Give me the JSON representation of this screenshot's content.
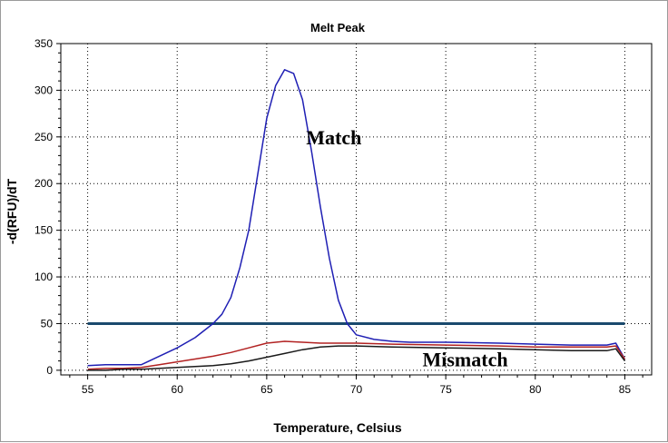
{
  "chart_data": {
    "type": "line",
    "title": "Melt Peak",
    "xlabel": "Temperature, Celsius",
    "ylabel": "-d(RFU)/dT",
    "xlim": [
      53.5,
      86.5
    ],
    "ylim": [
      -5,
      350
    ],
    "xticks": [
      55,
      60,
      65,
      70,
      75,
      80,
      85
    ],
    "yticks": [
      0,
      50,
      100,
      150,
      200,
      250,
      300,
      350
    ],
    "grid": true,
    "annotations": [
      {
        "text": "Match",
        "x": 67.2,
        "y": 242
      },
      {
        "text": "Mismatch",
        "x": 73.7,
        "y": 4
      }
    ],
    "threshold": {
      "y": 50,
      "color": "#1a4a6e"
    },
    "series": [
      {
        "color": "#1f1fb4",
        "x": [
          55,
          56,
          57,
          58,
          59,
          60,
          61,
          62,
          62.5,
          63,
          63.5,
          64,
          64.5,
          65,
          65.5,
          66,
          66.5,
          67,
          67.5,
          68,
          68.5,
          69,
          69.5,
          70,
          71,
          72,
          73,
          75,
          78,
          80,
          82,
          84,
          84.5,
          85
        ],
        "y": [
          5,
          6,
          6,
          6,
          15,
          24,
          35,
          50,
          60,
          78,
          110,
          150,
          210,
          270,
          305,
          322,
          318,
          290,
          235,
          175,
          120,
          75,
          50,
          38,
          33,
          31,
          30,
          30,
          29,
          28,
          27,
          27,
          29,
          12
        ]
      },
      {
        "color": "#b22222",
        "x": [
          55,
          56,
          57,
          58,
          59,
          60,
          61,
          62,
          63,
          64,
          65,
          66,
          67,
          68,
          69,
          70,
          72,
          75,
          78,
          80,
          82,
          84,
          84.5,
          85
        ],
        "y": [
          1,
          2,
          2,
          3,
          6,
          9,
          12,
          15,
          19,
          24,
          29,
          31,
          30,
          29,
          29,
          29,
          28,
          27,
          26,
          25,
          25,
          25,
          26,
          12
        ]
      },
      {
        "color": "#1a1a1a",
        "x": [
          55,
          56,
          57,
          58,
          59,
          60,
          61,
          62,
          63,
          64,
          65,
          66,
          67,
          68,
          69,
          70,
          72,
          75,
          78,
          80,
          82,
          84,
          84.5,
          85
        ],
        "y": [
          0,
          0,
          1,
          1,
          2,
          3,
          4,
          5,
          7,
          10,
          14,
          18,
          22,
          25,
          26,
          26,
          25,
          24,
          23,
          22,
          21,
          21,
          23,
          10
        ]
      }
    ]
  }
}
